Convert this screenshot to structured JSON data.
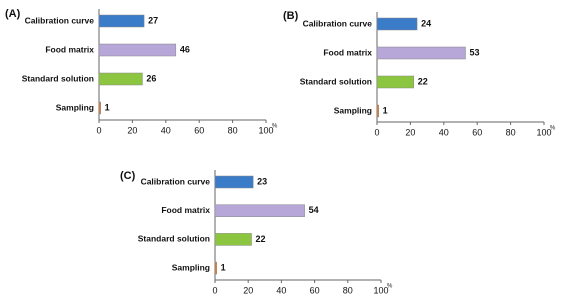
{
  "chart_data": [
    {
      "type": "bar",
      "title": "(A)",
      "categories": [
        "Calibration curve",
        "Food matrix",
        "Standard solution",
        "Sampling"
      ],
      "values": [
        27,
        46,
        26,
        1
      ],
      "colors": [
        "#3b7cc9",
        "#b7a6d8",
        "#8cc540",
        "#e07a2c"
      ],
      "xlim": [
        0,
        100
      ],
      "xticks": [
        0,
        20,
        40,
        60,
        80,
        100
      ],
      "xlabel": "%"
    },
    {
      "type": "bar",
      "title": "(B)",
      "categories": [
        "Calibration curve",
        "Food matrix",
        "Standard solution",
        "Sampling"
      ],
      "values": [
        24,
        53,
        22,
        1
      ],
      "colors": [
        "#3b7cc9",
        "#b7a6d8",
        "#8cc540",
        "#e07a2c"
      ],
      "xlim": [
        0,
        100
      ],
      "xticks": [
        0,
        20,
        40,
        60,
        80,
        100
      ],
      "xlabel": "%"
    },
    {
      "type": "bar",
      "title": "(C)",
      "categories": [
        "Calibration curve",
        "Food matrix",
        "Standard solution",
        "Sampling"
      ],
      "values": [
        23,
        54,
        22,
        1
      ],
      "colors": [
        "#3b7cc9",
        "#b7a6d8",
        "#8cc540",
        "#e07a2c"
      ],
      "xlim": [
        0,
        100
      ],
      "xticks": [
        0,
        20,
        40,
        60,
        80,
        100
      ],
      "xlabel": "%"
    }
  ]
}
